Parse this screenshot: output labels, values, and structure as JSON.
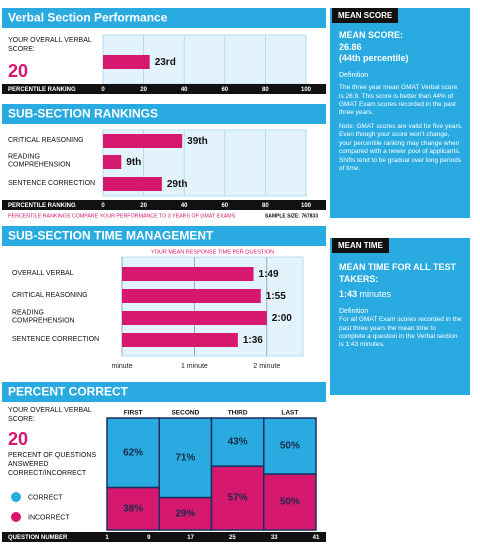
{
  "chart_data": [
    {
      "type": "bar",
      "title": "Verbal Section Performance",
      "label": "YOUR OVERALL VERBAL SCORE:",
      "score": 20,
      "values": [
        23
      ],
      "value_labels": [
        "23rd"
      ],
      "color": "#d6186f",
      "xlim": [
        0,
        100
      ],
      "xticks": [
        0,
        20,
        40,
        60,
        80,
        100
      ],
      "xlabel": "PERCENTILE RANKING",
      "grid": true
    },
    {
      "type": "bar",
      "title": "SUB-SECTION RANKINGS",
      "categories": [
        "CRITICAL REASONING",
        "READING COMPREHENSION",
        "SENTENCE CORRECTION"
      ],
      "values": [
        39,
        9,
        29
      ],
      "value_labels": [
        "39th",
        "9th",
        "29th"
      ],
      "color": "#d6186f",
      "xlim": [
        0,
        100
      ],
      "xticks": [
        0,
        20,
        40,
        60,
        80,
        100
      ],
      "xlabel": "PERCENTILE RANKING",
      "grid": true,
      "note": "PERCENTILE RANKINGS COMPARE YOUR PERFORMANCE TO 3 YEARS OF GMAT EXAMS",
      "sample": "SAMPLE SIZE: 767833"
    },
    {
      "type": "bar",
      "title": "SUB-SECTION TIME MANAGEMENT",
      "subtitle": "YOUR MEAN RESPONSE TIME PER QUESTION",
      "categories": [
        "OVERALL VERBAL",
        "CRITICAL REASONING",
        "READING COMPREHENSION",
        "SENTENCE CORRECTION"
      ],
      "values": [
        1.8167,
        1.9167,
        2,
        1.6
      ],
      "value_labels": [
        "1:49",
        "1:55",
        "2:00",
        "1:36"
      ],
      "color": "#d6186f",
      "xlim": [
        0,
        2.5
      ],
      "xticks": [
        {
          "value": 0,
          "label": "minute"
        },
        {
          "value": 1,
          "label": "1 minute"
        },
        {
          "value": 2,
          "label": "2 minute"
        }
      ],
      "grid": true
    },
    {
      "type": "stacked_bar",
      "title": "PERCENT CORRECT",
      "label": "YOUR OVERALL VERBAL SCORE:",
      "score": 20,
      "description": "PERCENT OF QUESTIONS ANSWERED CORRECT/INCORRECT",
      "categories": [
        "FIRST",
        "SECOND",
        "THIRD",
        "LAST"
      ],
      "series": [
        {
          "name": "CORRECT",
          "color": "#29abe2",
          "values": [
            62,
            71,
            43,
            50
          ],
          "value_labels": [
            "62%",
            "71%",
            "43%",
            "50%"
          ]
        },
        {
          "name": "INCORRECT",
          "color": "#d6186f",
          "values": [
            38,
            29,
            57,
            50
          ],
          "value_labels": [
            "38%",
            "29%",
            "57%",
            "50%"
          ]
        }
      ],
      "ylim": [
        0,
        100
      ],
      "xlabel": "QUESTION NUMBER",
      "xlim": [
        1,
        41
      ],
      "xticks": [
        1,
        9,
        17,
        25,
        33,
        41
      ]
    }
  ],
  "panels": [
    {
      "tag": "MEAN SCORE",
      "heading": "MEAN SCORE:",
      "value": "26.86",
      "sub": "(44th percentile)",
      "def_title": "Definition",
      "paragraphs": [
        "The three year mean GMAT Verbal score is 26.9. This score is better than 44% of GMAT Exam scores recorded in the past three years.",
        "Note: GMAT scores are valid for five years. Even though your score won't change, your percentile ranking may change when compared with a newer pool of applicants. Shifts tend to be gradual over long periods of time."
      ]
    },
    {
      "tag": "MEAN TIME",
      "heading": "MEAN TIME FOR ALL TEST TAKERS:",
      "value": "1:43",
      "unit": "minutes",
      "def_title": "Definition",
      "paragraphs": [
        "For all GMAT Exam scores recorded in the past three years the mean time to complete a question in the Verbal section is 1:43 minutes."
      ]
    }
  ]
}
